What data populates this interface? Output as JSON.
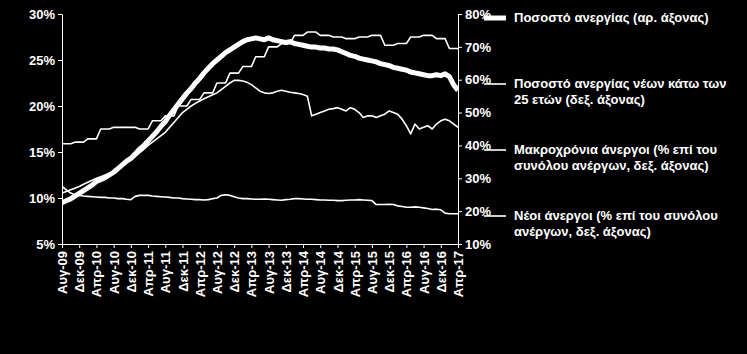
{
  "chart_data": {
    "type": "line",
    "categories": [
      "Αυγ-09",
      null,
      null,
      null,
      "Δεκ-09",
      null,
      null,
      null,
      "Απρ-10",
      null,
      null,
      null,
      "Αυγ-10",
      null,
      null,
      null,
      "Δεκ-10",
      null,
      null,
      null,
      "Απρ-11",
      null,
      null,
      null,
      "Αυγ-11",
      null,
      null,
      null,
      "Δεκ-11",
      null,
      null,
      null,
      "Απρ-12",
      null,
      null,
      null,
      "Αυγ-12",
      null,
      null,
      null,
      "Δεκ-12",
      null,
      null,
      null,
      "Απρ-13",
      null,
      null,
      null,
      "Αυγ-13",
      null,
      null,
      null,
      "Δεκ-13",
      null,
      null,
      null,
      "Απρ-14",
      null,
      null,
      null,
      "Αυγ-14",
      null,
      null,
      null,
      "Δεκ-14",
      null,
      null,
      null,
      "Απρ-15",
      null,
      null,
      null,
      "Αυγ-15",
      null,
      null,
      null,
      "Δεκ-15",
      null,
      null,
      null,
      "Απρ-16",
      null,
      null,
      null,
      "Αυγ-16",
      null,
      null,
      null,
      "Δεκ-16",
      null,
      null,
      null,
      "Απρ-17"
    ],
    "series": [
      {
        "name": "Ποσοστό ανεργίας (αρ. άξονας)",
        "color": "#ffffff",
        "axis": "y",
        "values": [
          9.5,
          9.7,
          9.9,
          10.2,
          10.5,
          10.8,
          11.1,
          11.4,
          11.8,
          12.0,
          12.2,
          12.5,
          12.8,
          13.2,
          13.6,
          14.0,
          14.3,
          14.8,
          15.3,
          15.7,
          16.2,
          16.7,
          17.2,
          17.8,
          18.3,
          19.0,
          19.6,
          20.2,
          20.8,
          21.4,
          21.9,
          22.5,
          23.0,
          23.6,
          24.1,
          24.6,
          25.0,
          25.4,
          25.8,
          26.1,
          26.4,
          26.7,
          27.0,
          27.2,
          27.3,
          27.4,
          27.3,
          27.2,
          27.4,
          27.2,
          27.1,
          27.0,
          26.9,
          27.0,
          26.8,
          26.7,
          26.6,
          26.5,
          26.4,
          26.4,
          26.3,
          26.3,
          26.2,
          26.2,
          26.1,
          25.9,
          25.7,
          25.5,
          25.4,
          25.2,
          25.1,
          25.0,
          24.9,
          24.8,
          24.6,
          24.5,
          24.4,
          24.2,
          24.1,
          24.0,
          23.9,
          23.7,
          23.6,
          23.5,
          23.4,
          23.3,
          23.3,
          23.4,
          23.3,
          23.5,
          23.2,
          22.3,
          21.7
        ]
      },
      {
        "name": "Ποσοστό ανεργίας νέων κάτω των 25 ετών (δεξ. άξονας)",
        "color": "#ffffff",
        "axis": "y2",
        "values": [
          25.5,
          26.0,
          26.5,
          27.0,
          27.5,
          28.2,
          28.8,
          29.4,
          30.0,
          30.5,
          31.0,
          31.5,
          32.0,
          32.8,
          33.7,
          34.6,
          35.5,
          36.6,
          37.7,
          38.8,
          40.0,
          41.0,
          42.0,
          43.0,
          44.0,
          45.5,
          47.0,
          48.5,
          50.0,
          51.0,
          52.0,
          52.8,
          53.5,
          54.2,
          54.8,
          55.4,
          56.0,
          57.0,
          58.0,
          59.0,
          59.8,
          59.8,
          59.6,
          59.2,
          58.5,
          57.5,
          56.5,
          56.0,
          55.8,
          56.0,
          56.5,
          56.8,
          56.5,
          56.2,
          56.0,
          55.8,
          55.5,
          55.0,
          49.0,
          49.5,
          50.0,
          50.5,
          51.0,
          51.2,
          51.5,
          51.0,
          50.5,
          51.5,
          51.0,
          50.0,
          48.5,
          49.0,
          49.0,
          48.5,
          49.0,
          49.5,
          50.5,
          50.0,
          49.5,
          48.0,
          46.0,
          43.5,
          46.5,
          45.0,
          45.5,
          46.0,
          45.0,
          46.5,
          47.5,
          48.0,
          47.5,
          46.5,
          45.5
        ]
      },
      {
        "name": "Μακροχρόνια άνεργοι (% επί του συνόλου ανέργων, δεξ. άξονας)",
        "color": "#ffffff",
        "axis": "y2",
        "values": [
          40.5,
          40.5,
          40.5,
          41,
          41,
          41,
          42,
          42,
          42,
          45,
          45,
          45,
          45.5,
          45.5,
          45.5,
          45.5,
          45.5,
          45.5,
          45,
          45,
          45,
          47.5,
          47.5,
          47.5,
          49,
          49,
          49,
          52,
          52,
          52,
          54,
          54,
          54,
          56,
          56,
          56,
          59,
          59,
          59,
          62,
          62,
          62,
          64,
          64,
          64,
          67,
          67,
          67,
          70,
          70,
          70,
          71,
          71,
          71,
          73.5,
          73.5,
          73.5,
          74.5,
          74.5,
          74.5,
          73.5,
          73.5,
          73.5,
          73,
          73,
          73,
          72.5,
          72.5,
          72.5,
          73,
          73,
          73,
          73.5,
          73.5,
          73.5,
          70.5,
          70.5,
          70.5,
          71,
          71,
          71,
          73,
          73,
          73,
          73.5,
          73.5,
          73.5,
          72.5,
          72.5,
          72.5,
          69.5,
          69.5,
          69.5
        ]
      },
      {
        "name": "Νέοι άνεργοι (% επί του συνόλου ανέργων, δεξ. άξονας)",
        "color": "#ffffff",
        "axis": "y2",
        "values": [
          27.5,
          26.5,
          25.5,
          25.0,
          24.8,
          24.6,
          24.5,
          24.4,
          24.3,
          24.2,
          24.2,
          24.0,
          24.0,
          23.8,
          23.8,
          23.6,
          23.5,
          24.5,
          24.8,
          24.8,
          24.8,
          24.6,
          24.5,
          24.4,
          24.3,
          24.2,
          24.0,
          24.0,
          23.8,
          23.7,
          23.6,
          23.5,
          23.5,
          23.4,
          23.5,
          23.8,
          24.0,
          24.8,
          25.0,
          24.8,
          24.4,
          24.0,
          23.8,
          23.8,
          23.7,
          23.6,
          23.6,
          23.7,
          23.6,
          23.5,
          23.4,
          23.3,
          23.5,
          23.6,
          23.8,
          23.8,
          23.7,
          23.6,
          23.6,
          23.5,
          23.4,
          23.4,
          23.3,
          23.3,
          23.2,
          23.2,
          23.3,
          23.4,
          23.4,
          23.5,
          23.4,
          23.3,
          23.2,
          22.0,
          22.0,
          22.0,
          22.1,
          22.0,
          21.6,
          21.4,
          21.2,
          21.2,
          21.3,
          21.2,
          21.0,
          20.8,
          20.5,
          20.6,
          20.4,
          19.4,
          19.2,
          19.2,
          19.2
        ]
      }
    ],
    "ylim": [
      5,
      30
    ],
    "yticks": [
      {
        "value": 5,
        "label": "5%"
      },
      {
        "value": 10,
        "label": "10%"
      },
      {
        "value": 15,
        "label": "15%"
      },
      {
        "value": 20,
        "label": "20%"
      },
      {
        "value": 25,
        "label": "25%"
      },
      {
        "value": 30,
        "label": "30%"
      }
    ],
    "y2lim": [
      10,
      80
    ],
    "y2ticks": [
      {
        "value": 10,
        "label": "10%"
      },
      {
        "value": 20,
        "label": "20%"
      },
      {
        "value": 30,
        "label": "30%"
      },
      {
        "value": 40,
        "label": "40%"
      },
      {
        "value": 50,
        "label": "50%"
      },
      {
        "value": 60,
        "label": "60%"
      },
      {
        "value": 70,
        "label": "70%"
      },
      {
        "value": 80,
        "label": "80%"
      }
    ],
    "grid": false,
    "legend": "right"
  }
}
